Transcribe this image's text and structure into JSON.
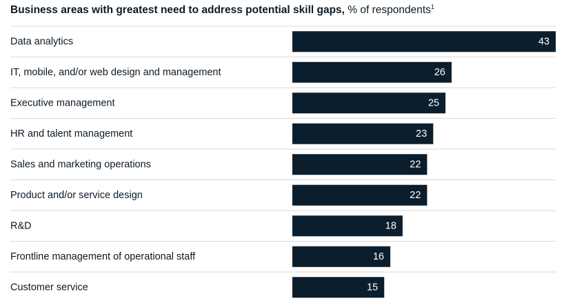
{
  "header": {
    "title": "Business areas with greatest need to address potential skill gaps,",
    "subtitle": "% of respondents",
    "footnote": "1"
  },
  "chart_data": {
    "type": "bar",
    "orientation": "horizontal",
    "categories": [
      "Data analytics",
      "IT, mobile, and/or web design and management",
      "Executive management",
      "HR and talent management",
      "Sales and marketing operations",
      "Product and/or service design",
      "R&D",
      "Frontline management of operational staff",
      "Customer service"
    ],
    "values": [
      43,
      26,
      25,
      23,
      22,
      22,
      18,
      16,
      15
    ],
    "value_labels": [
      "43",
      "26",
      "25",
      "23",
      "22",
      "22",
      "18",
      "16",
      "15"
    ],
    "xlim": [
      0,
      43
    ],
    "grid": false,
    "row_dividers": true,
    "bar_color": "#0b1e2d",
    "divider_color": "#d9d9d9",
    "label_color": "#0b1a26",
    "value_label_color": "#ffffff"
  }
}
